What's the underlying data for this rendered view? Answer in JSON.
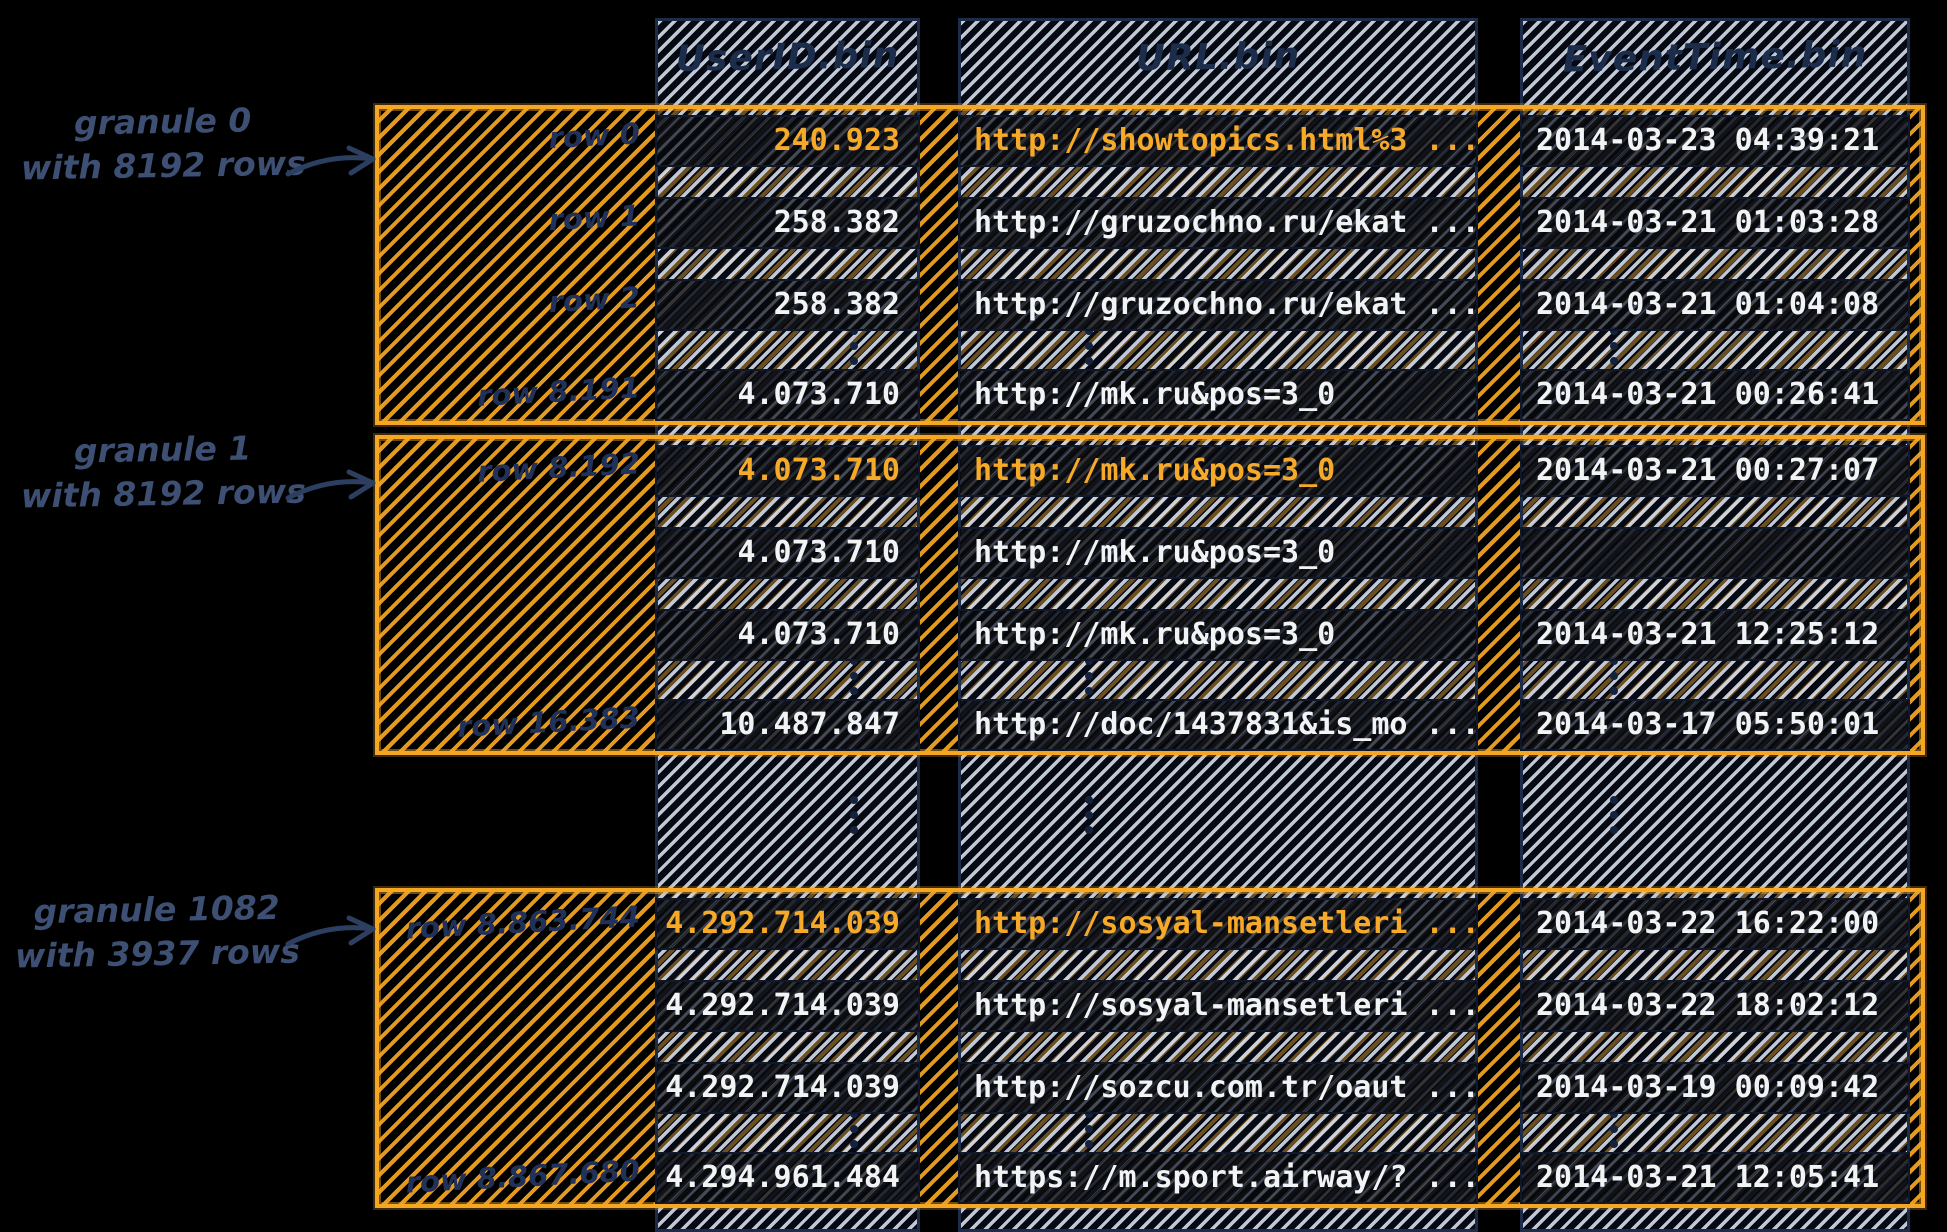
{
  "columns": [
    {
      "id": "userid",
      "header": "UserID.bin"
    },
    {
      "id": "url",
      "header": "URL.bin"
    },
    {
      "id": "eventtime",
      "header": "EventTime.bin"
    }
  ],
  "granules": [
    {
      "annotation": {
        "line1": "granule 0",
        "line2": "with 8192 rows"
      },
      "rows": [
        {
          "label": "row 0",
          "highlight": true,
          "userid": "240.923",
          "url": "http://showtopics.html%3 ...",
          "eventtime": "2014-03-23 04:39:21"
        },
        {
          "label": "row 1",
          "highlight": false,
          "userid": "258.382",
          "url": "http://gruzochno.ru/ekat ...",
          "eventtime": "2014-03-21 01:03:28"
        },
        {
          "label": "row 2",
          "highlight": false,
          "userid": "258.382",
          "url": "http://gruzochno.ru/ekat ...",
          "eventtime": "2014-03-21 01:04:08"
        },
        {
          "label": "row 8.191",
          "highlight": false,
          "userid": "4.073.710",
          "url": "http://mk.ru&pos=3_0",
          "eventtime": "2014-03-21 00:26:41"
        }
      ]
    },
    {
      "annotation": {
        "line1": "granule 1",
        "line2": "with 8192 rows"
      },
      "rows": [
        {
          "label": "row 8.192",
          "highlight": true,
          "userid": "4.073.710",
          "url": "http://mk.ru&pos=3_0",
          "eventtime": "2014-03-21 00:27:07"
        },
        {
          "label": "",
          "highlight": false,
          "userid": "4.073.710",
          "url": "http://mk.ru&pos=3_0",
          "eventtime": ""
        },
        {
          "label": "",
          "highlight": false,
          "userid": "4.073.710",
          "url": "http://mk.ru&pos=3_0",
          "eventtime": "2014-03-21 12:25:12"
        },
        {
          "label": "row 16.383",
          "highlight": false,
          "userid": "10.487.847",
          "url": "http://doc/1437831&is_mo ...",
          "eventtime": "2014-03-17 05:50:01"
        }
      ]
    },
    {
      "annotation": {
        "line1": "granule 1082",
        "line2": "with 3937 rows"
      },
      "rows": [
        {
          "label": "row 8.863.744",
          "highlight": true,
          "userid": "4.292.714.039",
          "url": "http://sosyal-mansetleri ...",
          "eventtime": "2014-03-22 16:22:00"
        },
        {
          "label": "",
          "highlight": false,
          "userid": "4.292.714.039",
          "url": "http://sosyal-mansetleri ...",
          "eventtime": "2014-03-22 18:02:12"
        },
        {
          "label": "",
          "highlight": false,
          "userid": "4.292.714.039",
          "url": "http://sozcu.com.tr/oaut ...",
          "eventtime": "2014-03-19 00:09:42"
        },
        {
          "label": "row 8.867.680",
          "highlight": false,
          "userid": "4.294.961.484",
          "url": "https://m.sport.airway/? ...",
          "eventtime": "2014-03-21 12:05:41"
        }
      ]
    }
  ],
  "colors": {
    "background": "#000000",
    "granule_accent": "#f5a623",
    "column_hatch_light": "#cfd8e5",
    "ink_navy": "#1e2f4e",
    "annotation_blue": "#3d5074",
    "row_text": "#f2f3f5",
    "highlight_text": "#f7a928"
  },
  "icons": {
    "vertical_ellipsis": "⋮",
    "arrow_right": "→"
  }
}
